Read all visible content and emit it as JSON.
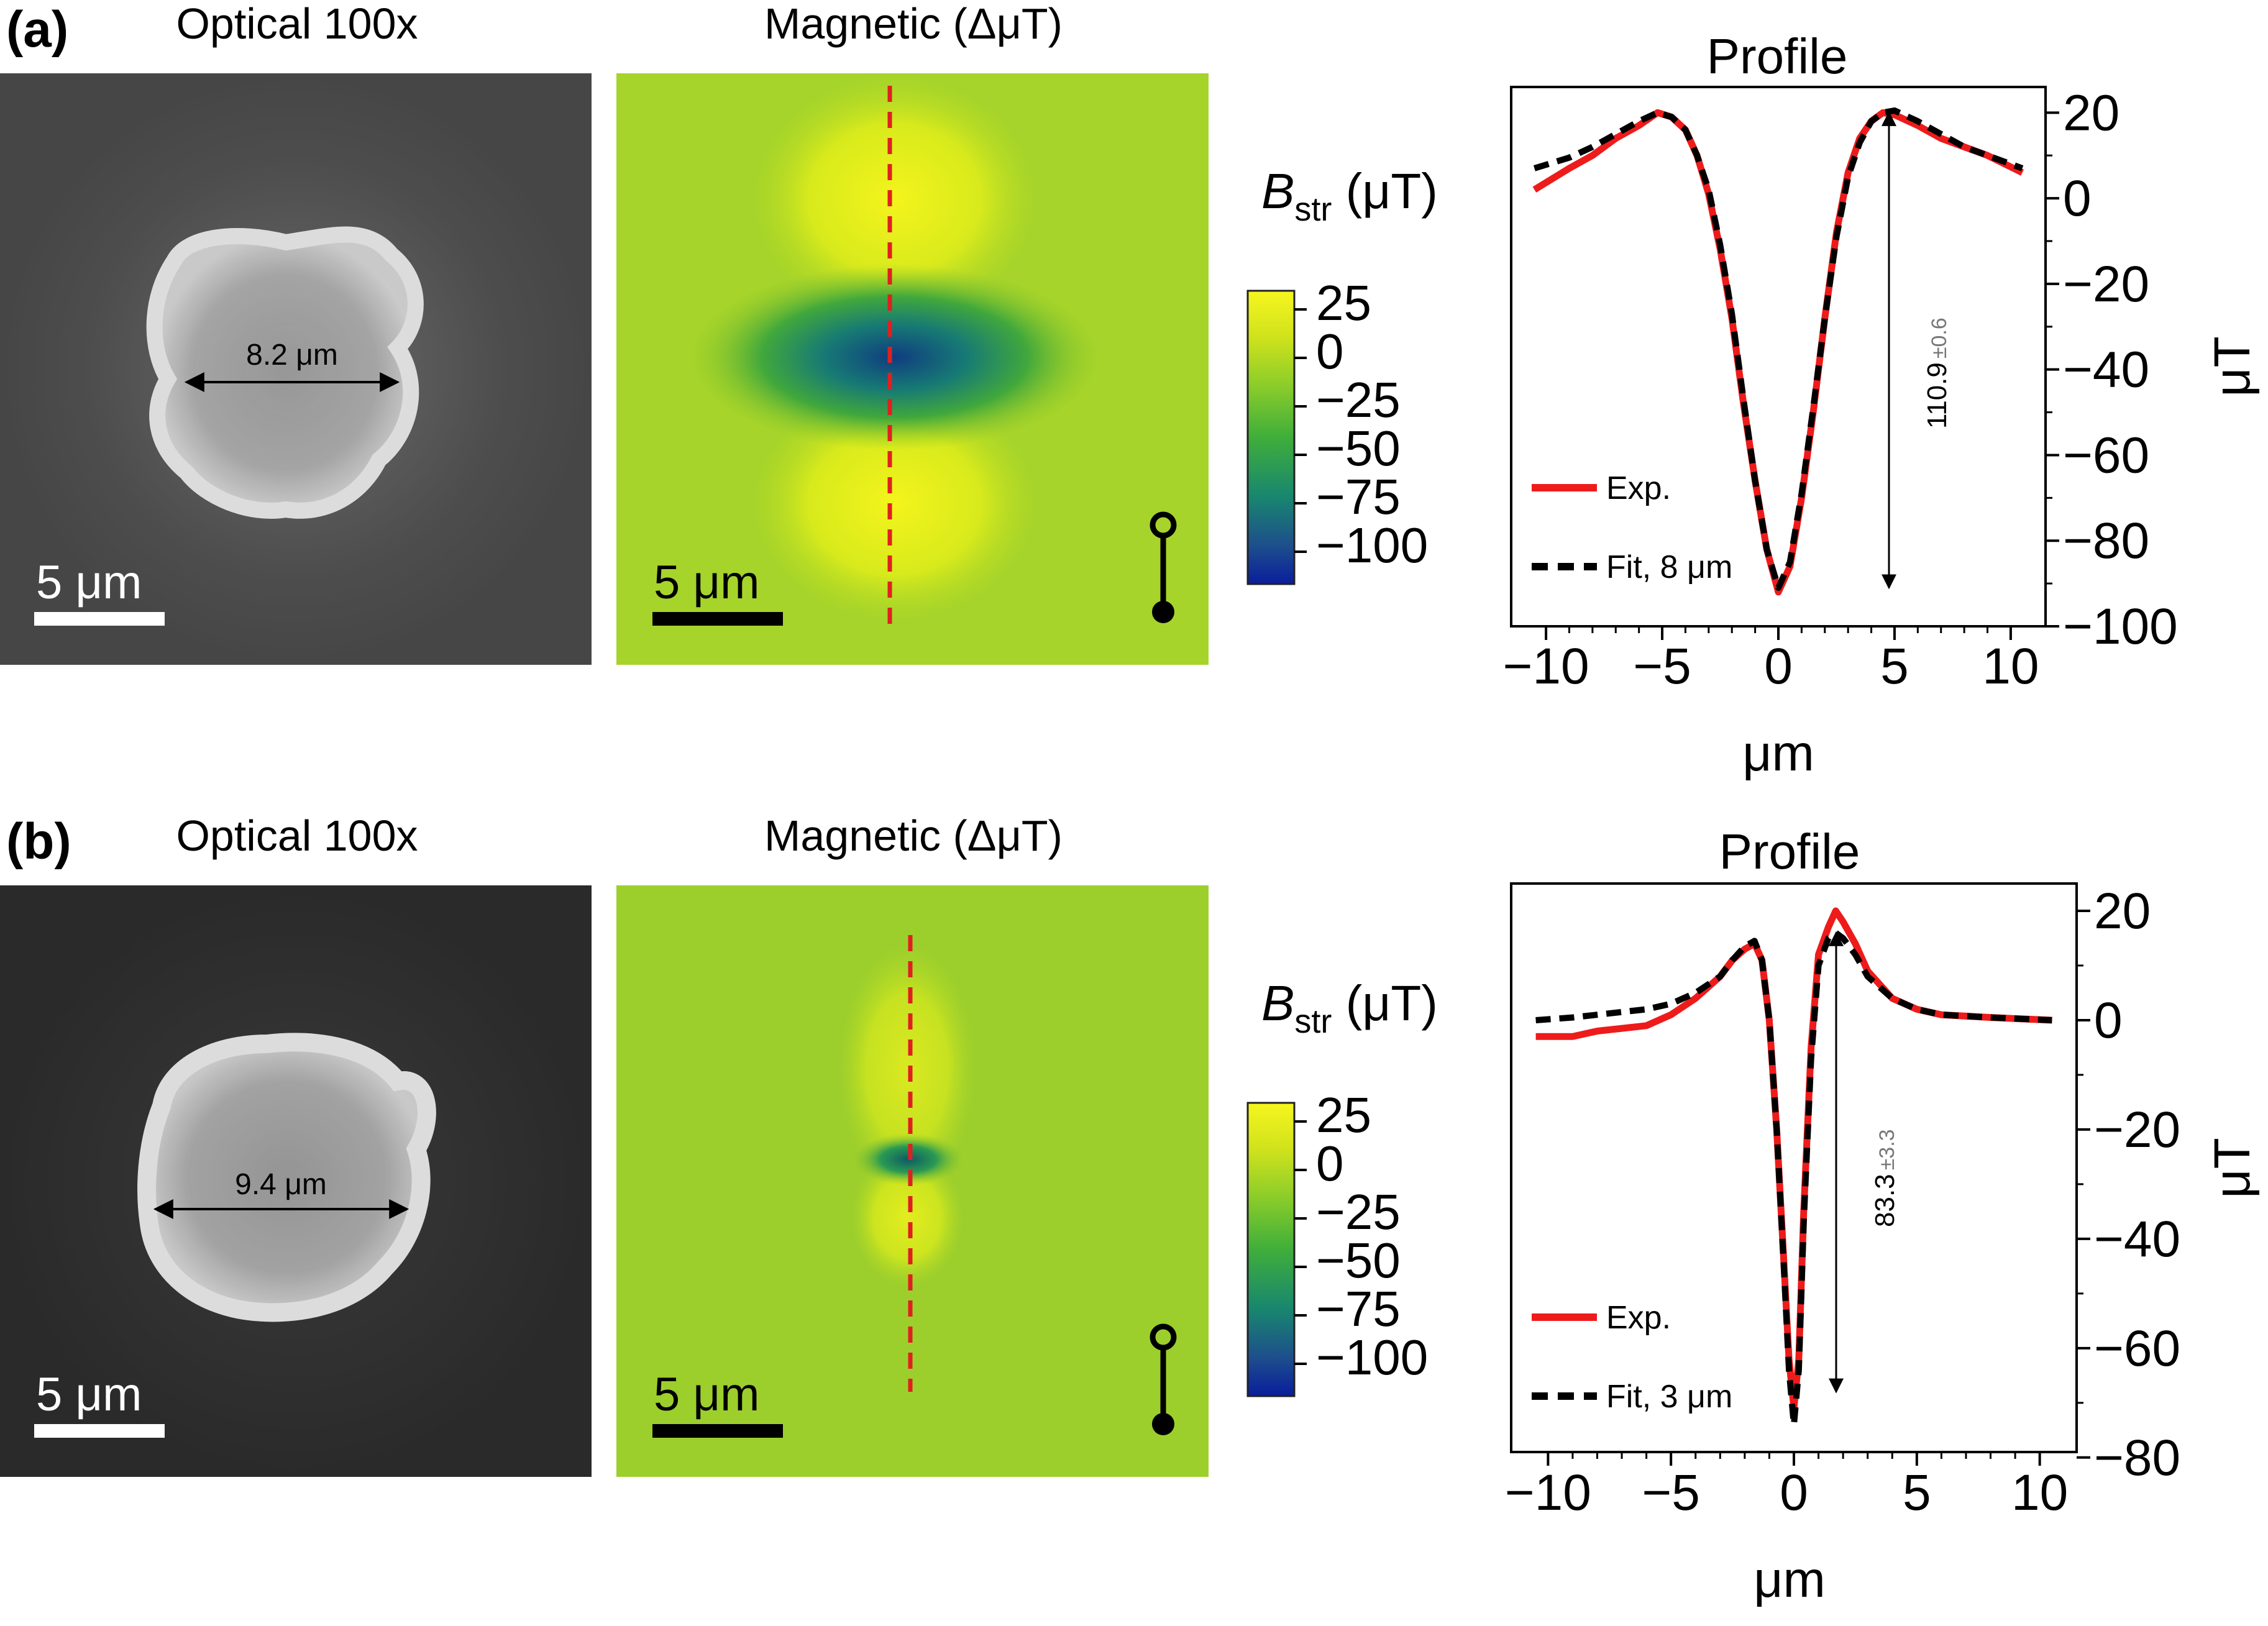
{
  "rows": [
    {
      "id": "a",
      "label": "(a)",
      "optical_title": "Optical 100x",
      "magnetic_title": "Magnetic (ΔμT)",
      "diameter_label": "8.2 μm",
      "optical_scalebar": "5  μm",
      "magnetic_scalebar": "5  μm",
      "colorbar": {
        "title_sym": "B",
        "title_sub": "str",
        "title_unit": " (μT)",
        "ticks": [
          "25",
          "0",
          "−25",
          "−50",
          "−75",
          "−100"
        ],
        "range": [
          -110,
          25
        ]
      },
      "profile_title": "Profile",
      "xlabel": "μm",
      "ylabel": "μT",
      "xticks": [
        "−10",
        "−5",
        "0",
        "5",
        "10"
      ],
      "yticks": [
        "20",
        "0",
        "−20",
        "−40",
        "−60",
        "−80",
        "−100"
      ],
      "amplitude": "110.9",
      "amplitude_err": "±0.6",
      "legend": {
        "exp": "Exp.",
        "fit": "Fit, 8 μm"
      }
    },
    {
      "id": "b",
      "label": "(b)",
      "optical_title": "Optical 100x",
      "magnetic_title": "Magnetic (ΔμT)",
      "diameter_label": "9.4 μm",
      "optical_scalebar": "5  μm",
      "magnetic_scalebar": "5  μm",
      "colorbar": {
        "title_sym": "B",
        "title_sub": "str",
        "title_unit": " (μT)",
        "ticks": [
          "25",
          "0",
          "−25",
          "−50",
          "−75",
          "−100"
        ],
        "range": [
          -110,
          25
        ]
      },
      "profile_title": "Profile",
      "xlabel": "μm",
      "ylabel": "μT",
      "xticks": [
        "−10",
        "−5",
        "0",
        "5",
        "10"
      ],
      "yticks": [
        "20",
        "0",
        "−20",
        "−40",
        "−60",
        "−80"
      ],
      "amplitude": "83.3",
      "amplitude_err": "±3.3",
      "legend": {
        "exp": "Exp.",
        "fit": "Fit, 3 μm"
      }
    }
  ],
  "chart_data": [
    {
      "type": "line",
      "title": "Profile",
      "xlabel": "μm",
      "ylabel": "μT",
      "xlim": [
        -11.5,
        11.5
      ],
      "ylim": [
        -100,
        26
      ],
      "series": [
        {
          "name": "Exp.",
          "x": [
            -10.5,
            -9,
            -8,
            -7,
            -6,
            -5.2,
            -4.6,
            -4,
            -3.5,
            -3,
            -2.5,
            -2,
            -1.5,
            -1,
            -0.5,
            0,
            0.5,
            1,
            1.5,
            2,
            2.5,
            3,
            3.5,
            4,
            4.5,
            5,
            6,
            7,
            8,
            9,
            10.5
          ],
          "y": [
            2,
            7,
            10,
            14,
            17,
            20,
            19,
            16,
            10,
            1,
            -12,
            -28,
            -48,
            -66,
            -82,
            -92,
            -86,
            -70,
            -50,
            -28,
            -8,
            6,
            14,
            18,
            20,
            19.5,
            17,
            14,
            12,
            10,
            6
          ]
        },
        {
          "name": "Fit, 8 μm",
          "x": [
            -10.5,
            -9,
            -8,
            -7,
            -6,
            -5.2,
            -4.6,
            -4,
            -3.5,
            -3,
            -2.5,
            -2,
            -1.5,
            -1,
            -0.5,
            0,
            0.5,
            1,
            1.5,
            2,
            2.5,
            3,
            3.5,
            4,
            4.5,
            5,
            6,
            7,
            8,
            9,
            10.5
          ],
          "y": [
            7,
            9.5,
            12,
            15,
            18,
            20,
            19,
            16,
            10,
            2,
            -11,
            -27,
            -47,
            -66,
            -82,
            -91,
            -85,
            -69,
            -49,
            -28,
            -9,
            5,
            13,
            18,
            20,
            20.5,
            18,
            15,
            12,
            10,
            7
          ]
        }
      ],
      "annotation": "110.9 ±0.6"
    },
    {
      "type": "line",
      "title": "Profile",
      "xlabel": "μm",
      "ylabel": "μT",
      "xlim": [
        -11.5,
        11.5
      ],
      "ylim": [
        -79,
        25
      ],
      "series": [
        {
          "name": "Exp.",
          "x": [
            -10.5,
            -9,
            -8,
            -6,
            -5,
            -4,
            -3,
            -2.5,
            -2,
            -1.6,
            -1.3,
            -1,
            -0.7,
            -0.4,
            -0.2,
            0,
            0.2,
            0.4,
            0.7,
            1,
            1.4,
            1.7,
            2,
            2.5,
            3,
            4,
            5,
            6,
            8,
            10.5
          ],
          "y": [
            -3,
            -3,
            -2,
            -1,
            1,
            4,
            8,
            11,
            13,
            14,
            11,
            0,
            -20,
            -45,
            -62,
            -71,
            -62,
            -35,
            -5,
            12,
            17,
            20,
            18,
            14,
            9,
            4,
            2,
            1,
            0.5,
            0
          ]
        },
        {
          "name": "Fit, 3 μm",
          "x": [
            -10.5,
            -9,
            -8,
            -6,
            -5,
            -4,
            -3,
            -2.5,
            -2,
            -1.6,
            -1.3,
            -1,
            -0.7,
            -0.4,
            -0.2,
            0,
            0.2,
            0.4,
            0.7,
            1,
            1.4,
            1.7,
            2,
            2.5,
            3,
            4,
            5,
            6,
            8,
            10.5
          ],
          "y": [
            0,
            0.5,
            1,
            2,
            3,
            5,
            8,
            11,
            13.5,
            14.5,
            11,
            0,
            -20,
            -46,
            -64,
            -74,
            -64,
            -37,
            -7,
            10,
            15,
            16,
            15,
            12,
            8,
            4,
            2,
            1,
            0.5,
            0
          ]
        }
      ],
      "annotation": "83.3 ±3.3"
    }
  ]
}
